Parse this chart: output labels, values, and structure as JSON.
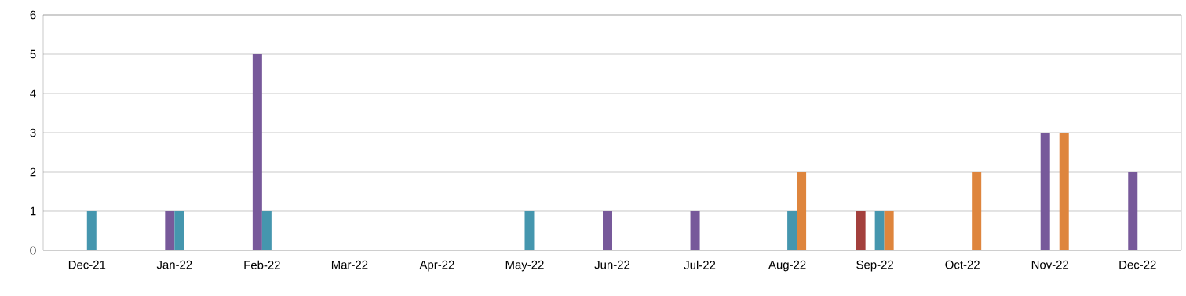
{
  "chart_data": {
    "type": "bar",
    "categories": [
      "Dec-21",
      "Jan-22",
      "Feb-22",
      "Mar-22",
      "Apr-22",
      "May-22",
      "Jun-22",
      "Jul-22",
      "Aug-22",
      "Sep-22",
      "Oct-22",
      "Nov-22",
      "Dec-22"
    ],
    "series": [
      {
        "color": "#a3403d",
        "values": [
          null,
          null,
          null,
          null,
          null,
          null,
          null,
          null,
          null,
          1,
          null,
          null,
          null
        ]
      },
      {
        "color": "#77599a",
        "values": [
          null,
          1,
          5,
          null,
          null,
          null,
          1,
          1,
          null,
          null,
          null,
          3,
          2
        ]
      },
      {
        "color": "#4596ae",
        "values": [
          1,
          1,
          1,
          null,
          null,
          1,
          null,
          null,
          1,
          1,
          null,
          null,
          null
        ]
      },
      {
        "color": "#de853d",
        "values": [
          null,
          null,
          null,
          null,
          null,
          null,
          null,
          null,
          2,
          1,
          2,
          3,
          null
        ]
      }
    ],
    "ylim": [
      0,
      6
    ],
    "yticks": [
      0,
      1,
      2,
      3,
      4,
      5,
      6
    ],
    "grid": "y"
  }
}
